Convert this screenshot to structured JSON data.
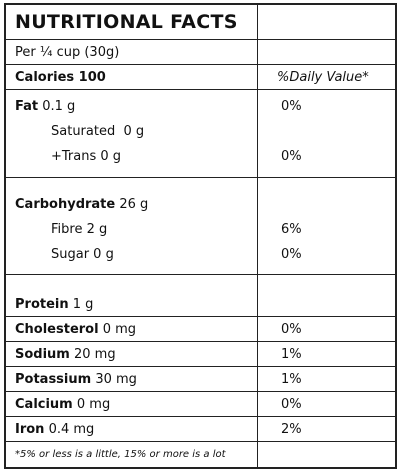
{
  "title": "NUTRITIONAL FACTS",
  "serving": "Per ¼ cup (30g)",
  "calories_label": "Calories 100",
  "daily_value_header": "%Daily Value*",
  "fat": {
    "name": "Fat",
    "amount": "0.1 g",
    "dv": "0%"
  },
  "saturated": {
    "text": "Saturated  0 g"
  },
  "trans": {
    "text": "+Trans 0 g",
    "dv": "0%"
  },
  "carbohydrate": {
    "name": "Carbohydrate",
    "amount": "26 g"
  },
  "fibre": {
    "text": "Fibre 2 g",
    "dv": "6%"
  },
  "sugar": {
    "text": "Sugar 0 g",
    "dv": "0%"
  },
  "protein": {
    "name": "Protein",
    "amount": "1 g"
  },
  "cholesterol": {
    "name": "Cholesterol",
    "amount": "0 mg",
    "dv": "0%"
  },
  "sodium": {
    "name": "Sodium",
    "amount": "20 mg",
    "dv": "1%"
  },
  "potassium": {
    "name": "Potassium",
    "amount": "30 mg",
    "dv": "1%"
  },
  "calcium": {
    "name": "Calcium",
    "amount": "0 mg",
    "dv": "0%"
  },
  "iron": {
    "name": "Iron",
    "amount": "0.4 mg",
    "dv": "2%"
  },
  "footnote": "*5% or less is a little, 15% or more is a lot"
}
